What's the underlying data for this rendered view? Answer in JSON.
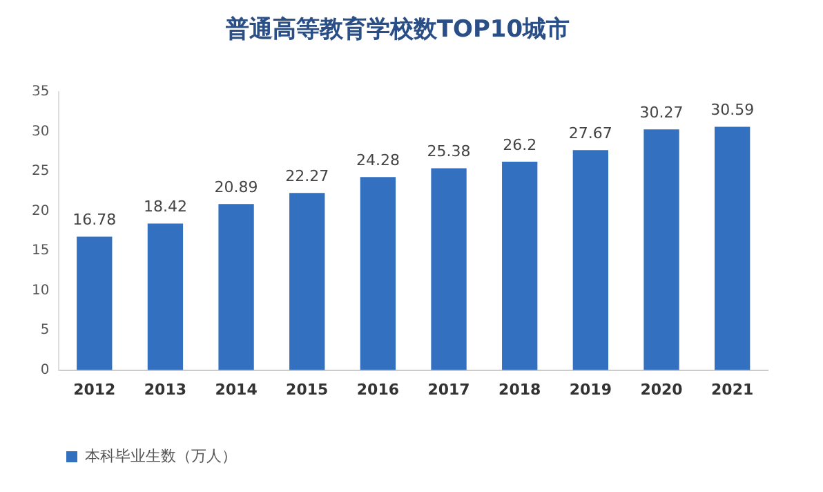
{
  "chart_data": {
    "type": "bar",
    "title": "普通高等教育学校数TOP10城市",
    "categories": [
      "2012",
      "2013",
      "2014",
      "2015",
      "2016",
      "2017",
      "2018",
      "2019",
      "2020",
      "2021"
    ],
    "series": [
      {
        "name": "本科毕业生数（万人）",
        "color": "#3370c0",
        "values": [
          16.78,
          18.42,
          20.89,
          22.27,
          24.28,
          25.38,
          26.2,
          27.67,
          30.27,
          30.59
        ]
      }
    ],
    "ylim": [
      0,
      35
    ],
    "yticks": [
      0,
      5,
      10,
      15,
      20,
      25,
      30,
      35
    ],
    "grid": false,
    "legend": "bottom left",
    "data_labels": true
  }
}
